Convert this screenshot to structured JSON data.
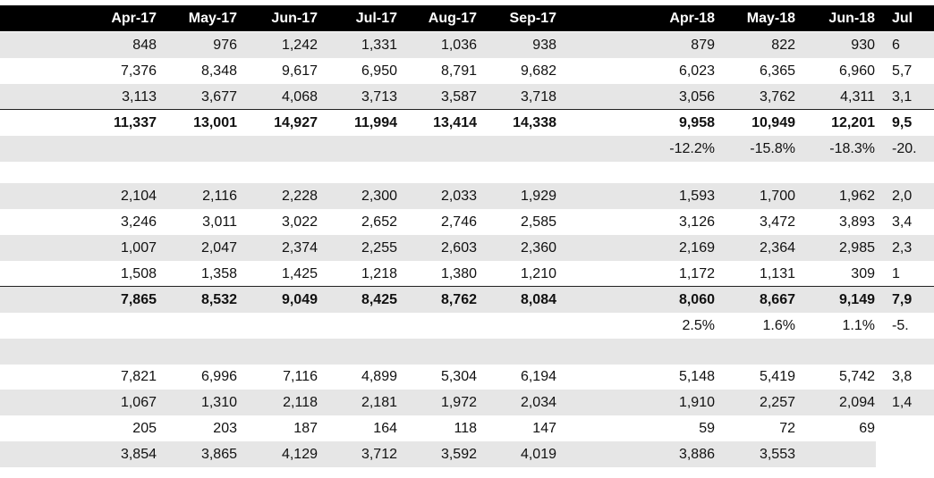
{
  "header": [
    "Apr-17",
    "May-17",
    "Jun-17",
    "Jul-17",
    "Aug-17",
    "Sep-17",
    "Apr-18",
    "May-18",
    "Jun-18",
    "Jul"
  ],
  "rows": [
    {
      "cells": [
        "848",
        "976",
        "1,242",
        "1,331",
        "1,036",
        "938",
        "879",
        "822",
        "930",
        "6"
      ]
    },
    {
      "cells": [
        "7,376",
        "8,348",
        "9,617",
        "6,950",
        "8,791",
        "9,682",
        "6,023",
        "6,365",
        "6,960",
        "5,7"
      ]
    },
    {
      "cells": [
        "3,113",
        "3,677",
        "4,068",
        "3,713",
        "3,587",
        "3,718",
        "3,056",
        "3,762",
        "4,311",
        "3,1"
      ]
    },
    {
      "cells": [
        "11,337",
        "13,001",
        "14,927",
        "11,994",
        "13,414",
        "14,338",
        "9,958",
        "10,949",
        "12,201",
        "9,5"
      ],
      "bold": true
    },
    {
      "cells": [
        "",
        "",
        "",
        "",
        "",
        "",
        "-12.2%",
        "-15.8%",
        "-18.3%",
        "-20."
      ]
    },
    {
      "cells": [
        "",
        "",
        "",
        "",
        "",
        "",
        "",
        "",
        "",
        ""
      ]
    },
    {
      "cells": [
        "2,104",
        "2,116",
        "2,228",
        "2,300",
        "2,033",
        "1,929",
        "1,593",
        "1,700",
        "1,962",
        "2,0"
      ]
    },
    {
      "cells": [
        "3,246",
        "3,011",
        "3,022",
        "2,652",
        "2,746",
        "2,585",
        "3,126",
        "3,472",
        "3,893",
        "3,4"
      ]
    },
    {
      "cells": [
        "1,007",
        "2,047",
        "2,374",
        "2,255",
        "2,603",
        "2,360",
        "2,169",
        "2,364",
        "2,985",
        "2,3"
      ]
    },
    {
      "cells": [
        "1,508",
        "1,358",
        "1,425",
        "1,218",
        "1,380",
        "1,210",
        "1,172",
        "1,131",
        "309",
        "1"
      ]
    },
    {
      "cells": [
        "7,865",
        "8,532",
        "9,049",
        "8,425",
        "8,762",
        "8,084",
        "8,060",
        "8,667",
        "9,149",
        "7,9"
      ],
      "bold": true
    },
    {
      "cells": [
        "",
        "",
        "",
        "",
        "",
        "",
        "2.5%",
        "1.6%",
        "1.1%",
        "-5."
      ]
    },
    {
      "cells": [
        "",
        "",
        "",
        "",
        "",
        "",
        "",
        "",
        "",
        ""
      ]
    },
    {
      "cells": [
        "7,821",
        "6,996",
        "7,116",
        "4,899",
        "5,304",
        "6,194",
        "5,148",
        "5,419",
        "5,742",
        "3,8"
      ]
    },
    {
      "cells": [
        "1,067",
        "1,310",
        "2,118",
        "2,181",
        "1,972",
        "2,034",
        "1,910",
        "2,257",
        "2,094",
        "1,4"
      ]
    },
    {
      "cells": [
        "205",
        "203",
        "187",
        "164",
        "118",
        "147",
        "59",
        "72",
        "69",
        ""
      ]
    },
    {
      "cells": [
        "3,854",
        "3,865",
        "4,129",
        "3,712",
        "3,592",
        "4,019",
        "3,886",
        "3,553",
        "",
        ""
      ]
    }
  ]
}
